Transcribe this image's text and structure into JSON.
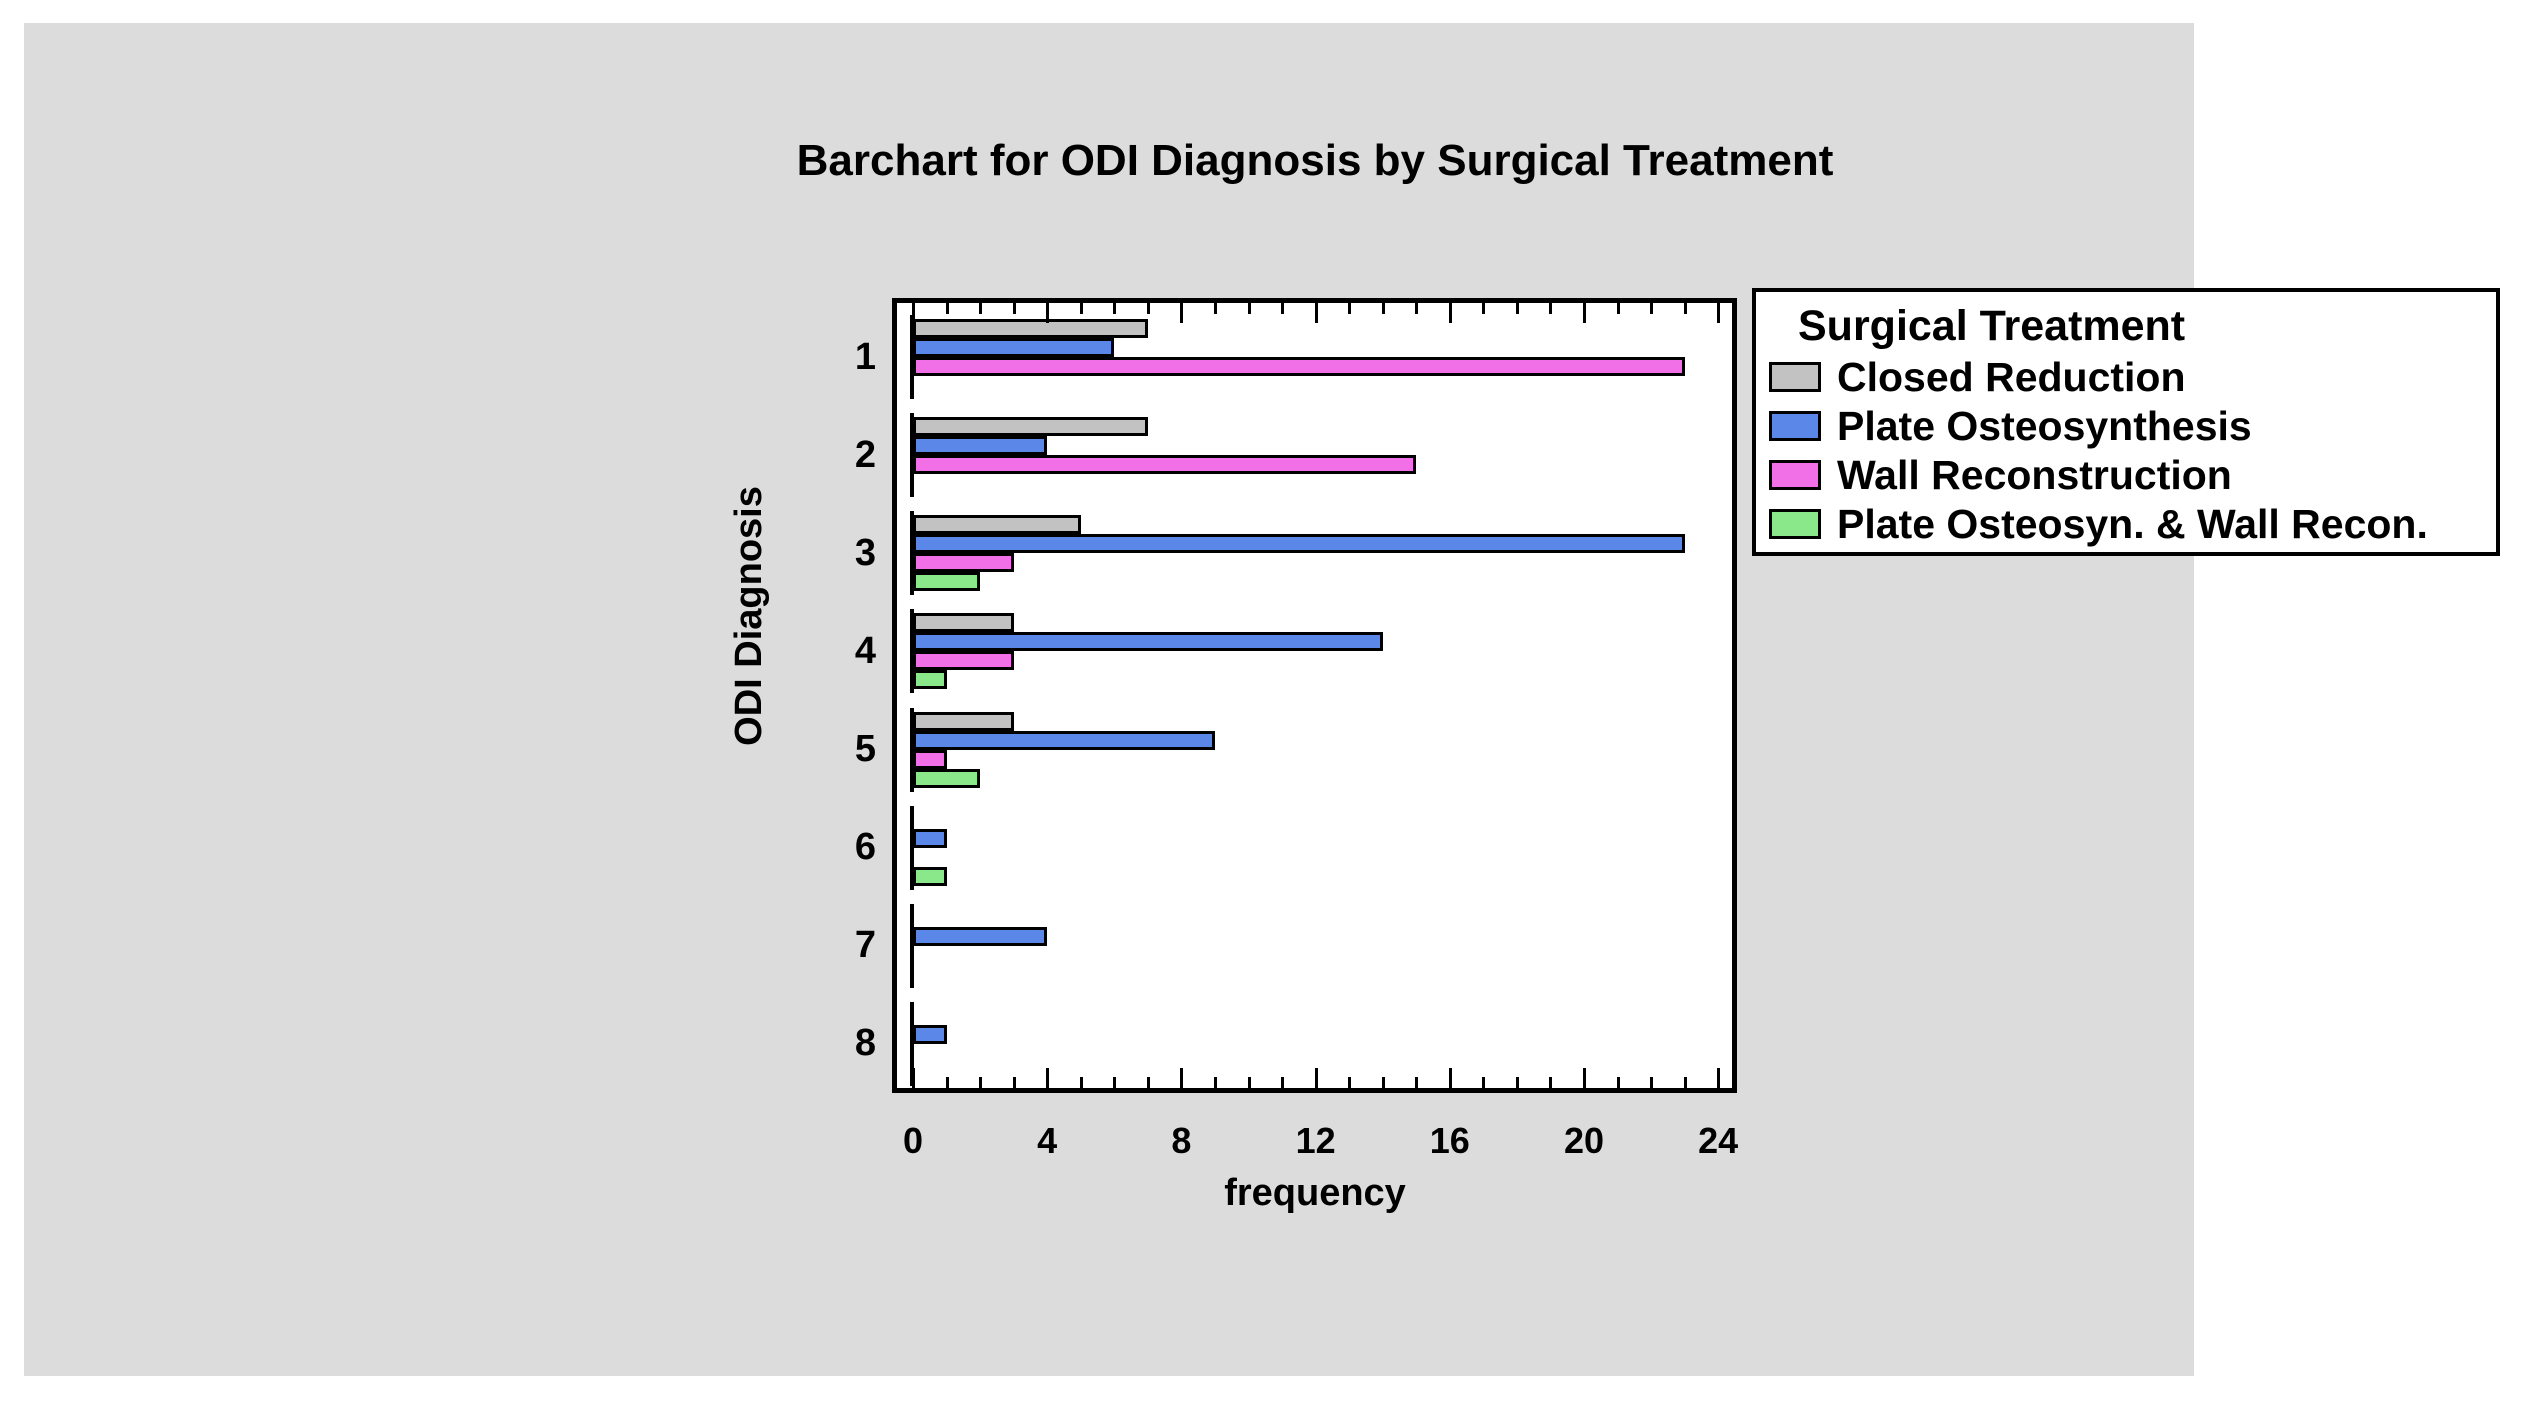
{
  "title": "Barchart for ODI Diagnosis by Surgical Treatment",
  "legend": {
    "title": "Surgical Treatment",
    "entries": [
      {
        "label": "Closed Reduction",
        "color": "#c2c2c2"
      },
      {
        "label": "Plate Osteosynthesis",
        "color": "#5b87e8"
      },
      {
        "label": "Wall Reconstruction",
        "color": "#f170e8"
      },
      {
        "label": "Plate Osteosyn. & Wall Recon.",
        "color": "#8ae88a"
      }
    ]
  },
  "chart_data": {
    "type": "bar",
    "orientation": "horizontal",
    "title": "Barchart for ODI Diagnosis by Surgical Treatment",
    "xlabel": "frequency",
    "ylabel": "ODI Diagnosis",
    "categories": [
      "1",
      "2",
      "3",
      "4",
      "5",
      "6",
      "7",
      "8"
    ],
    "series": [
      {
        "name": "Closed Reduction",
        "color": "#c2c2c2",
        "values": [
          7,
          7,
          5,
          3,
          3,
          0,
          0,
          0
        ]
      },
      {
        "name": "Plate Osteosynthesis",
        "color": "#5b87e8",
        "values": [
          6,
          4,
          23,
          14,
          9,
          1,
          4,
          1
        ]
      },
      {
        "name": "Wall Reconstruction",
        "color": "#f170e8",
        "values": [
          23,
          15,
          3,
          3,
          1,
          0,
          0,
          0
        ]
      },
      {
        "name": "Plate Osteosyn. & Wall Recon.",
        "color": "#8ae88a",
        "values": [
          0,
          0,
          2,
          1,
          2,
          1,
          0,
          0
        ]
      }
    ],
    "xlim": [
      0,
      24
    ],
    "xticks_major": [
      0,
      4,
      8,
      12,
      16,
      20,
      24
    ],
    "xtick_minor_step": 1,
    "grid": false,
    "legend_position": "right",
    "colors_note": {
      "background_panel": "#dcdcdc",
      "plot_background": "#ffffff",
      "border": "#000000"
    }
  }
}
